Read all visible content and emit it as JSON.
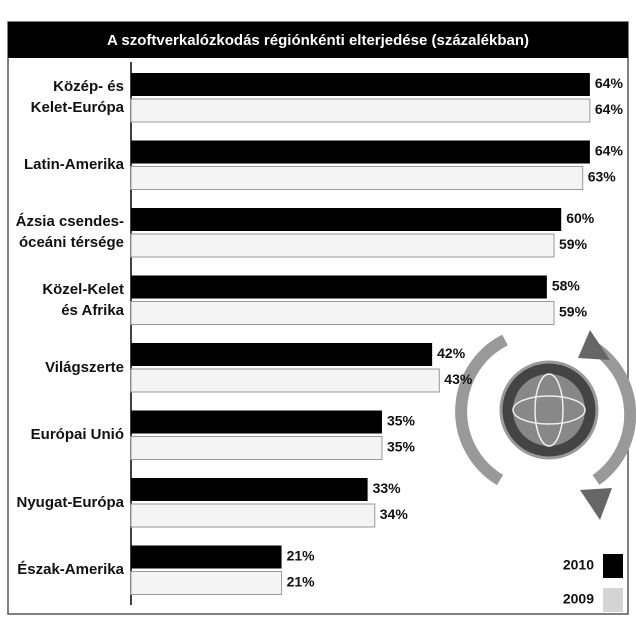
{
  "chart_data": {
    "type": "bar",
    "orientation": "horizontal",
    "title": "A szoftverkalózkodás régiónkénti elterjedése (százalékban)",
    "categories": [
      "Közép- és\nKelet-Európa",
      "Latin-Amerika",
      "Ázsia csendes-\nóceáni térsége",
      "Közel-Kelet\nés Afrika",
      "Világszerte",
      "Európai Unió",
      "Nyugat-Európa",
      "Észak-Amerika"
    ],
    "series": [
      {
        "name": "2010",
        "color": "#000000",
        "values": [
          64,
          64,
          60,
          58,
          42,
          35,
          33,
          21
        ],
        "value_labels": [
          "64%",
          "64%",
          "60%",
          "58%",
          "42%",
          "35%",
          "33%",
          "21%"
        ]
      },
      {
        "name": "2009",
        "color": "#f4f4f4",
        "values": [
          64,
          63,
          59,
          59,
          43,
          35,
          34,
          21
        ],
        "value_labels": [
          "64%",
          "63%",
          "59%",
          "59%",
          "43%",
          "35%",
          "34%",
          "21%"
        ]
      }
    ]
  }
}
